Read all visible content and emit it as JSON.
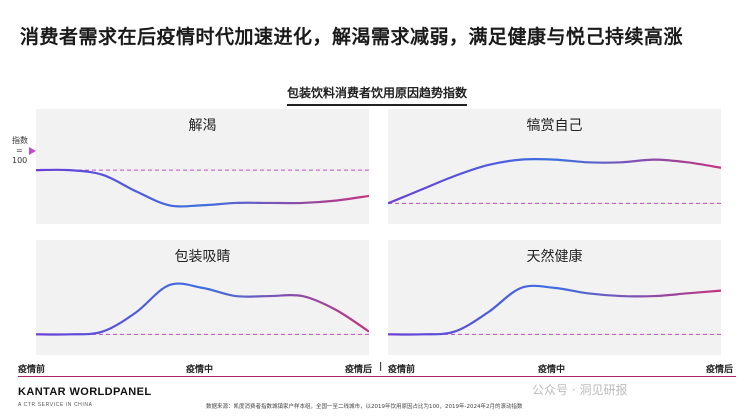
{
  "page": {
    "title": "消费者需求在后疫情时代加速进化，解渴需求减弱，满足健康与悦己持续高涨",
    "chart_title": "包装饮料消费者饮用原因趋势指数",
    "index_label_line1": "指数",
    "index_label_line2": "=",
    "index_label_line3": "100",
    "logo": "KANTAR WORLDPANEL",
    "logo_sub": "A CTR SERVICE IN CHINA",
    "source": "数据来源：凯度消费者指数城镇家户样本组，全国一至二线城市，以2019年饮用原因占比为100，2019年-2024年2月的滚动指数",
    "watermark": "公众号 · 洞见研报"
  },
  "colors": {
    "line_start": "#6a3fd8",
    "line_mid": "#3d6fe0",
    "line_end": "#c4337e",
    "reference_line": "#c34cc7",
    "panel_bg": "#f2f2f2",
    "axis_line": "#b02070"
  },
  "chart_data": [
    {
      "type": "line",
      "title": "解渴",
      "x": [
        0,
        0.1,
        0.2,
        0.3,
        0.4,
        0.5,
        0.6,
        0.7,
        0.8,
        0.9,
        1.0
      ],
      "series": [
        {
          "values": [
            100,
            100,
            98,
            91,
            85,
            85,
            86,
            86,
            86,
            87,
            89
          ]
        }
      ],
      "reference": 100,
      "ylim": [
        80,
        115
      ]
    },
    {
      "type": "line",
      "title": "犒赏自己",
      "x": [
        0,
        0.1,
        0.2,
        0.3,
        0.4,
        0.5,
        0.6,
        0.7,
        0.8,
        0.9,
        1.0
      ],
      "series": [
        {
          "values": [
            100,
            105,
            110,
            114,
            116,
            116,
            115,
            115,
            116,
            115,
            113
          ]
        }
      ],
      "reference": 100,
      "ylim": [
        95,
        125
      ]
    },
    {
      "type": "line",
      "title": "包装吸睛",
      "x": [
        0,
        0.1,
        0.2,
        0.3,
        0.4,
        0.5,
        0.6,
        0.7,
        0.8,
        0.9,
        1.0
      ],
      "series": [
        {
          "values": [
            100,
            100,
            101,
            108,
            118,
            117,
            114,
            114,
            114,
            109,
            101
          ]
        }
      ],
      "reference": 100,
      "ylim": [
        95,
        125
      ]
    },
    {
      "type": "line",
      "title": "天然健康",
      "x": [
        0,
        0.1,
        0.2,
        0.3,
        0.4,
        0.5,
        0.6,
        0.7,
        0.8,
        0.9,
        1.0
      ],
      "series": [
        {
          "values": [
            100,
            100,
            101,
            108,
            117,
            117,
            115,
            114,
            114,
            115,
            116
          ]
        }
      ],
      "reference": 100,
      "ylim": [
        95,
        125
      ]
    }
  ],
  "x_ticks_left": [
    "疫情前",
    "疫情中",
    "疫情后"
  ],
  "x_ticks_right": [
    "疫情前",
    "疫情中",
    "疫情后"
  ],
  "x_tick_separator": "|"
}
